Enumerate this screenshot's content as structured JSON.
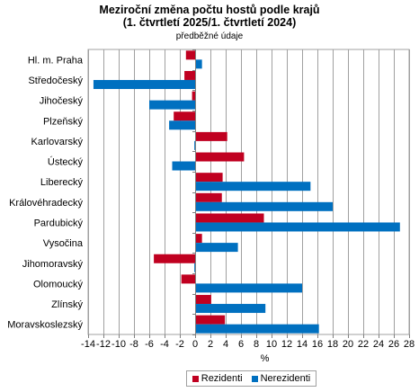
{
  "chart_data": {
    "type": "bar",
    "orientation": "horizontal",
    "title": [
      "Meziroční změna počtu hostů podle krajů",
      "(1. čtvrtletí 2025/1. čtvrtletí 2024)"
    ],
    "subtitle": "předběžné údaje",
    "xlabel": "%",
    "ylabel": "",
    "xlim": [
      -14,
      28
    ],
    "xticks": [
      -14,
      -12,
      -10,
      -8,
      -6,
      -4,
      -2,
      0,
      2,
      4,
      6,
      8,
      10,
      12,
      14,
      16,
      18,
      20,
      22,
      24,
      26,
      28
    ],
    "grid": "vertical",
    "legend": "bottom",
    "categories": [
      "Hl. m. Praha",
      "Středočeský",
      "Jihočeský",
      "Plzeňský",
      "Karlovarský",
      "Ústecký",
      "Liberecký",
      "Královéhradecký",
      "Pardubický",
      "Vysočina",
      "Jihomoravský",
      "Olomoucký",
      "Zlínský",
      "Moravskoslezský"
    ],
    "series": [
      {
        "name": "Rezidenti",
        "color": "#c00020",
        "values": [
          -1.2,
          -1.4,
          -0.4,
          -2.8,
          4.2,
          6.4,
          3.6,
          3.5,
          9.0,
          0.9,
          -5.4,
          -1.8,
          2.1,
          3.9
        ]
      },
      {
        "name": "Nerezidenti",
        "color": "#0070c0",
        "values": [
          0.9,
          -13.3,
          -6.0,
          -3.4,
          -0.1,
          -3.0,
          15.1,
          18.0,
          26.8,
          5.6,
          -0.1,
          14.0,
          9.2,
          16.2
        ]
      }
    ]
  }
}
